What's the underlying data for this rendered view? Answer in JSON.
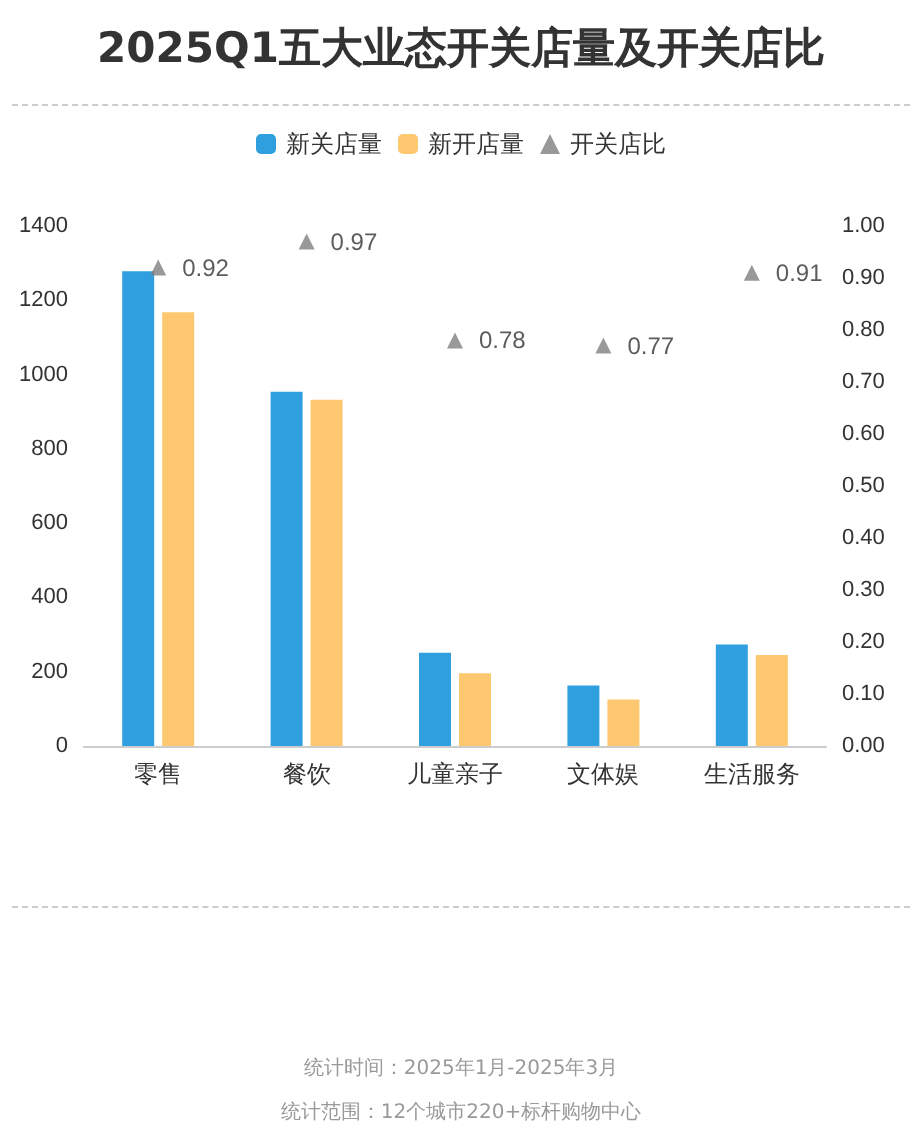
{
  "chart_data": {
    "type": "bar",
    "title": "2025Q1五大业态开关店量及开关店比",
    "categories": [
      "零售",
      "餐饮",
      "儿童亲子",
      "文体娱",
      "生活服务"
    ],
    "series": [
      {
        "name": "新关店量",
        "color": "#2f9fe0",
        "values": [
          1278,
          954,
          251,
          163,
          273
        ]
      },
      {
        "name": "新开店量",
        "color": "#fdc870",
        "values": [
          1168,
          932,
          196,
          125,
          245
        ]
      },
      {
        "name": "开关店比",
        "type": "scatter",
        "axis": "y2",
        "marker": "triangle",
        "color": "#808080",
        "values": [
          0.92,
          0.97,
          0.78,
          0.77,
          0.91
        ],
        "value_labels": [
          "0.92",
          "0.97",
          "0.78",
          "0.77",
          "0.91"
        ]
      }
    ],
    "ylim": [
      0,
      1400
    ],
    "yticks": [
      0,
      200,
      400,
      600,
      800,
      1000,
      1200,
      1400
    ],
    "y2lim": [
      0,
      1
    ],
    "y2ticks": [
      {
        "value": 0,
        "label": "0.00"
      },
      {
        "value": 0.1,
        "label": "0.10"
      },
      {
        "value": 0.2,
        "label": "0.20"
      },
      {
        "value": 0.3,
        "label": "0.30"
      },
      {
        "value": 0.4,
        "label": "0.40"
      },
      {
        "value": 0.5,
        "label": "0.50"
      },
      {
        "value": 0.6,
        "label": "0.60"
      },
      {
        "value": 0.7,
        "label": "0.70"
      },
      {
        "value": 0.8,
        "label": "0.80"
      },
      {
        "value": 0.9,
        "label": "0.90"
      },
      {
        "value": 1,
        "label": "1.00"
      }
    ],
    "grid": false,
    "legend": "top",
    "annotations": [
      "统计时间：2025年1月-2025年3月",
      "统计范围：12个城市220+标杆购物中心"
    ]
  }
}
